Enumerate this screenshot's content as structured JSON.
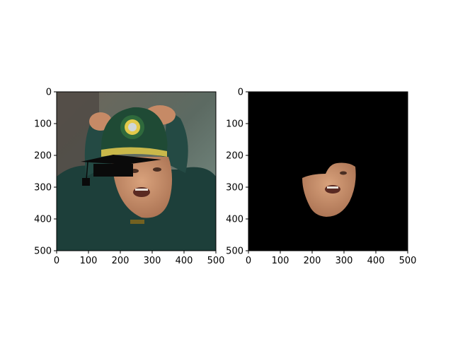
{
  "chart_data": [
    {
      "type": "image",
      "title": "",
      "xlabel": "",
      "ylabel": "",
      "xlim": [
        0,
        500
      ],
      "ylim": [
        500,
        0
      ],
      "x_ticks": [
        0,
        100,
        200,
        300,
        400,
        500
      ],
      "y_ticks": [
        0,
        100,
        200,
        300,
        400,
        500
      ],
      "content": "photo of a man wearing a green cap, hands on head, mouth open; black graduation-cap overlay at upper left",
      "grid": false
    },
    {
      "type": "image",
      "title": "",
      "xlabel": "",
      "ylabel": "",
      "xlim": [
        0,
        500
      ],
      "ylim": [
        500,
        0
      ],
      "x_ticks": [
        0,
        100,
        200,
        300,
        400,
        500
      ],
      "y_ticks": [
        0,
        100,
        200,
        300,
        400,
        500
      ],
      "content": "face-segmentation mask: only the lower face visible on black background",
      "grid": false
    }
  ],
  "colors": {
    "background": "#ffffff",
    "mask_background": "#000000",
    "cap_green": "#1f4a35",
    "shirt_teal": "#1d3f3a",
    "skin": "#c8906c"
  }
}
